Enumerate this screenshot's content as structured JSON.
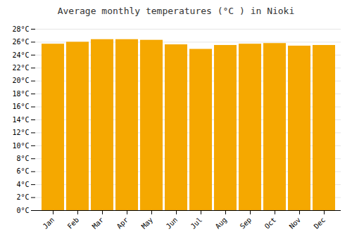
{
  "chart_data": {
    "type": "bar",
    "title": "Average monthly temperatures (°C ) in Nioki",
    "categories": [
      "Jan",
      "Feb",
      "Mar",
      "Apr",
      "May",
      "Jun",
      "Jul",
      "Aug",
      "Sep",
      "Oct",
      "Nov",
      "Dec"
    ],
    "values": [
      25.7,
      26.0,
      26.4,
      26.4,
      26.3,
      25.6,
      24.9,
      25.5,
      25.7,
      25.8,
      25.4,
      25.5
    ],
    "color": "#F5A800",
    "ylim": [
      0,
      28
    ],
    "yticks": [
      {
        "value": 0,
        "label": "0°C"
      },
      {
        "value": 2,
        "label": "2°C"
      },
      {
        "value": 4,
        "label": "4°C"
      },
      {
        "value": 6,
        "label": "6°C"
      },
      {
        "value": 8,
        "label": "8°C"
      },
      {
        "value": 10,
        "label": "10°C"
      },
      {
        "value": 12,
        "label": "12°C"
      },
      {
        "value": 14,
        "label": "14°C"
      },
      {
        "value": 16,
        "label": "16°C"
      },
      {
        "value": 18,
        "label": "18°C"
      },
      {
        "value": 20,
        "label": "20°C"
      },
      {
        "value": 22,
        "label": "22°C"
      },
      {
        "value": 24,
        "label": "24°C"
      },
      {
        "value": 26,
        "label": "26°C"
      },
      {
        "value": 28,
        "label": "28°C"
      }
    ],
    "grid": true
  }
}
